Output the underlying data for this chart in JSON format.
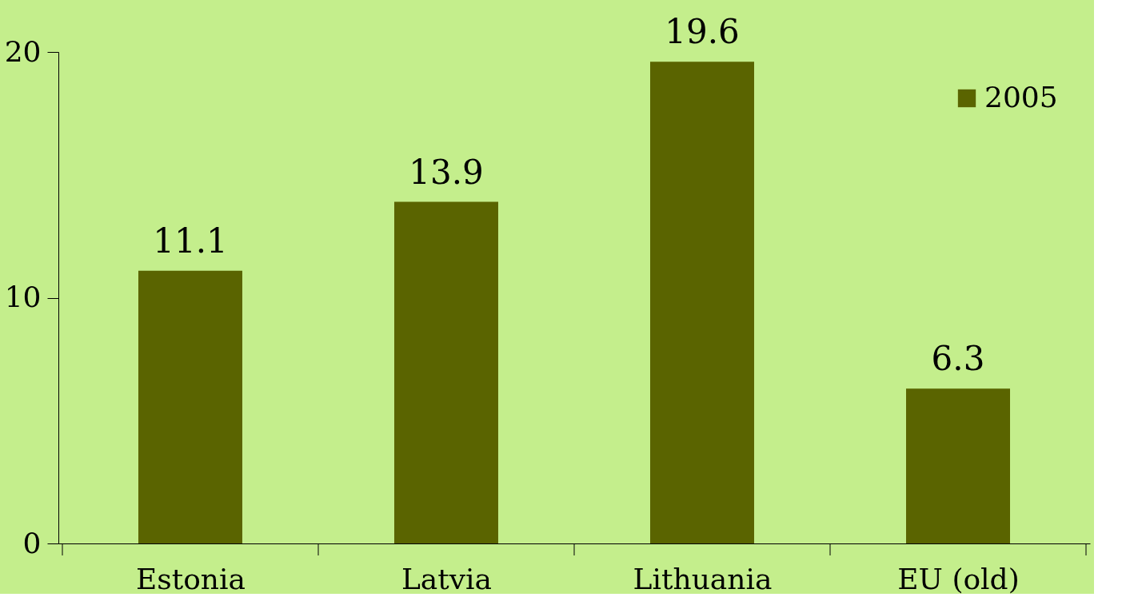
{
  "chart_data": {
    "type": "bar",
    "categories": [
      "Estonia",
      "Latvia",
      "Lithuania",
      "EU (old)"
    ],
    "series": [
      {
        "name": "2005",
        "color": "#5a6400",
        "values": [
          11.1,
          13.9,
          19.6,
          6.3
        ]
      }
    ],
    "ylim": [
      0,
      20
    ],
    "yticks": [
      0,
      10,
      20
    ],
    "grid": false,
    "legend": "top right",
    "data_labels": true
  }
}
